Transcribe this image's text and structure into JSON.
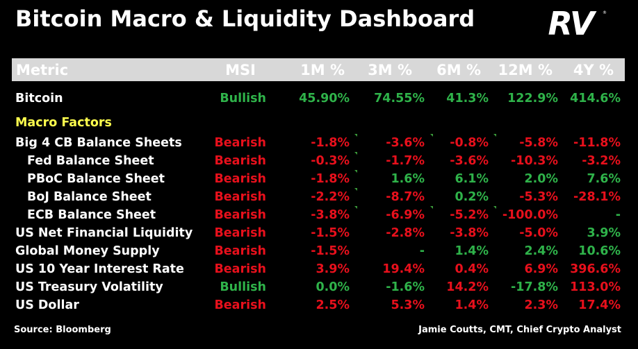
{
  "title": "Bitcoin Macro & Liquidity Dashboard",
  "logo_text": "RV",
  "colors": {
    "bullish": "#2fb34a",
    "bearish": "#e8101c",
    "section": "#ffff4d",
    "header_bg": "#d8d8d8"
  },
  "chart_data": {
    "type": "table",
    "columns": [
      "Metric",
      "MSI",
      "1M %",
      "3M %",
      "6M %",
      "12M %",
      "4Y %"
    ],
    "rows": [
      {
        "metric": "Bitcoin",
        "indent": false,
        "msi": "Bullish",
        "values": [
          "45.90%",
          "74.55%",
          "41.3%",
          "122.9%",
          "414.6%"
        ],
        "colors": [
          "g",
          "g",
          "g",
          "g",
          "g"
        ]
      },
      {
        "section": "Macro Factors"
      },
      {
        "metric": "Big 4 CB Balance Sheets",
        "indent": false,
        "msi": "Bearish",
        "values": [
          "-1.8%",
          "-3.6%",
          "-0.8%",
          "-5.8%",
          "-11.8%"
        ],
        "colors": [
          "r",
          "r",
          "r",
          "r",
          "r"
        ]
      },
      {
        "metric": "Fed Balance Sheet",
        "indent": true,
        "msi": "Bearish",
        "values": [
          "-0.3%",
          "-1.7%",
          "-3.6%",
          "-10.3%",
          "-3.2%"
        ],
        "colors": [
          "r",
          "r",
          "r",
          "r",
          "r"
        ]
      },
      {
        "metric": "PBoC Balance Sheet",
        "indent": true,
        "msi": "Bearish",
        "values": [
          "-1.8%",
          "1.6%",
          "6.1%",
          "2.0%",
          "7.6%"
        ],
        "colors": [
          "r",
          "g",
          "g",
          "g",
          "g"
        ]
      },
      {
        "metric": "BoJ Balance Sheet",
        "indent": true,
        "msi": "Bearish",
        "values": [
          "-2.2%",
          "-8.7%",
          "0.2%",
          "-5.3%",
          "-28.1%"
        ],
        "colors": [
          "r",
          "r",
          "g",
          "r",
          "r"
        ]
      },
      {
        "metric": "ECB Balance Sheet",
        "indent": true,
        "msi": "Bearish",
        "values": [
          "-3.8%",
          "-6.9%",
          "-5.2%",
          "-100.0%",
          "-"
        ],
        "colors": [
          "r",
          "r",
          "r",
          "r",
          "g"
        ]
      },
      {
        "metric": "US Net Financial Liquidity",
        "indent": false,
        "msi": "Bearish",
        "values": [
          "-1.5%",
          "-2.8%",
          "-3.8%",
          "-5.0%",
          "3.9%"
        ],
        "colors": [
          "r",
          "r",
          "r",
          "r",
          "g"
        ]
      },
      {
        "metric": "Global Money Supply",
        "indent": false,
        "msi": "Bearish",
        "values": [
          "-1.5%",
          "-",
          "1.4%",
          "2.4%",
          "10.6%"
        ],
        "colors": [
          "r",
          "g",
          "g",
          "g",
          "g"
        ]
      },
      {
        "metric": "US 10 Year Interest Rate",
        "indent": false,
        "msi": "Bearish",
        "values": [
          "3.9%",
          "19.4%",
          "0.4%",
          "6.9%",
          "396.6%"
        ],
        "colors": [
          "r",
          "r",
          "r",
          "r",
          "r"
        ]
      },
      {
        "metric": "US Treasury Volatility",
        "indent": false,
        "msi": "Bullish",
        "values": [
          "0.0%",
          "-1.6%",
          "14.2%",
          "-17.8%",
          "113.0%"
        ],
        "colors": [
          "g",
          "g",
          "r",
          "g",
          "r"
        ]
      },
      {
        "metric": "US Dollar",
        "indent": false,
        "msi": "Bearish",
        "values": [
          "2.5%",
          "5.3%",
          "1.4%",
          "2.3%",
          "17.4%"
        ],
        "colors": [
          "r",
          "r",
          "r",
          "r",
          "r"
        ]
      }
    ]
  },
  "footer": {
    "source": "Source: Bloomberg",
    "author": "Jamie Coutts, CMT, Chief Crypto Analyst"
  }
}
